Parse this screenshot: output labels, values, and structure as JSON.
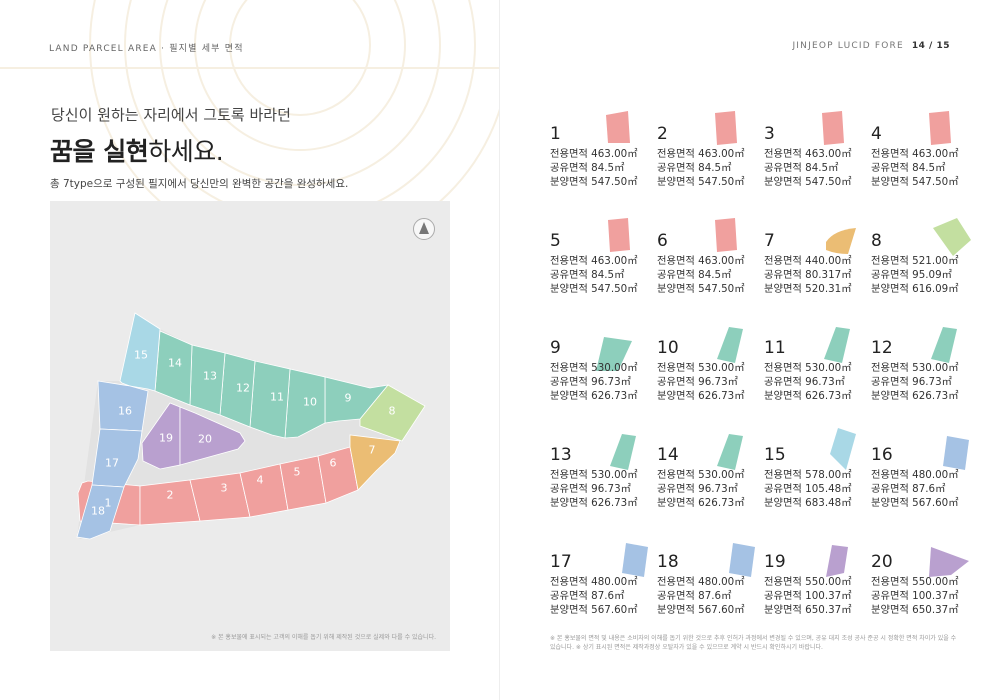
{
  "header": {
    "left_en": "LAND PARCEL AREA",
    "left_sep": "·",
    "left_ko": "필지별 세부 면적",
    "right_brand": "JINJEOP LUCID FORE",
    "page": "14 / 15"
  },
  "intro": {
    "subtitle": "당신이 원하는 자리에서 그토록 바라던",
    "title_bold": "꿈을 실현",
    "title_rest": "하세요.",
    "description": "총 7type으로 구성된 필지에서 당신만의 완벽한 공간을 완성하세요."
  },
  "map": {
    "compass_icon": "north-arrow-icon",
    "note": "※ 본 홍보물에 표시되는 고객의 이해를 돕기 위해 제작된 것으로 실제와 다를 수 있습니다.",
    "parcel_labels": [
      "1",
      "2",
      "3",
      "4",
      "5",
      "6",
      "7",
      "8",
      "9",
      "10",
      "11",
      "12",
      "13",
      "14",
      "15",
      "16",
      "17",
      "18",
      "19",
      "20"
    ]
  },
  "colors": {
    "pink": "#f0a09e",
    "orange": "#ebbd74",
    "green": "#c3dfa0",
    "teal": "#8dcfbc",
    "skyblue": "#a9d8e6",
    "blue": "#a5c2e4",
    "purple": "#b9a0cf"
  },
  "parcels": [
    {
      "num": "1",
      "exclusive": "전용면적 463.00㎡",
      "common": "공유면적 84.5㎡",
      "sale": "분양면적 547.50㎡",
      "color": "pink"
    },
    {
      "num": "2",
      "exclusive": "전용면적 463.00㎡",
      "common": "공유면적 84.5㎡",
      "sale": "분양면적 547.50㎡",
      "color": "pink"
    },
    {
      "num": "3",
      "exclusive": "전용면적 463.00㎡",
      "common": "공유면적 84.5㎡",
      "sale": "분양면적 547.50㎡",
      "color": "pink"
    },
    {
      "num": "4",
      "exclusive": "전용면적 463.00㎡",
      "common": "공유면적 84.5㎡",
      "sale": "분양면적 547.50㎡",
      "color": "pink"
    },
    {
      "num": "5",
      "exclusive": "전용면적 463.00㎡",
      "common": "공유면적 84.5㎡",
      "sale": "분양면적 547.50㎡",
      "color": "pink"
    },
    {
      "num": "6",
      "exclusive": "전용면적 463.00㎡",
      "common": "공유면적 84.5㎡",
      "sale": "분양면적 547.50㎡",
      "color": "pink"
    },
    {
      "num": "7",
      "exclusive": "전용면적 440.00㎡",
      "common": "공유면적 80.317㎡",
      "sale": "분양면적 520.31㎡",
      "color": "orange"
    },
    {
      "num": "8",
      "exclusive": "전용면적 521.00㎡",
      "common": "공유면적 95.09㎡",
      "sale": "분양면적 616.09㎡",
      "color": "green"
    },
    {
      "num": "9",
      "exclusive": "전용면적 530.00㎡",
      "common": "공유면적 96.73㎡",
      "sale": "분양면적 626.73㎡",
      "color": "teal"
    },
    {
      "num": "10",
      "exclusive": "전용면적 530.00㎡",
      "common": "공유면적 96.73㎡",
      "sale": "분양면적 626.73㎡",
      "color": "teal"
    },
    {
      "num": "11",
      "exclusive": "전용면적 530.00㎡",
      "common": "공유면적 96.73㎡",
      "sale": "분양면적 626.73㎡",
      "color": "teal"
    },
    {
      "num": "12",
      "exclusive": "전용면적 530.00㎡",
      "common": "공유면적 96.73㎡",
      "sale": "분양면적 626.73㎡",
      "color": "teal"
    },
    {
      "num": "13",
      "exclusive": "전용면적 530.00㎡",
      "common": "공유면적 96.73㎡",
      "sale": "분양면적 626.73㎡",
      "color": "teal"
    },
    {
      "num": "14",
      "exclusive": "전용면적 530.00㎡",
      "common": "공유면적 96.73㎡",
      "sale": "분양면적 626.73㎡",
      "color": "teal"
    },
    {
      "num": "15",
      "exclusive": "전용면적 578.00㎡",
      "common": "공유면적 105.48㎡",
      "sale": "분양면적 683.48㎡",
      "color": "skyblue"
    },
    {
      "num": "16",
      "exclusive": "전용면적 480.00㎡",
      "common": "공유면적 87.6㎡",
      "sale": "분양면적 567.60㎡",
      "color": "blue"
    },
    {
      "num": "17",
      "exclusive": "전용면적 480.00㎡",
      "common": "공유면적 87.6㎡",
      "sale": "분양면적 567.60㎡",
      "color": "blue"
    },
    {
      "num": "18",
      "exclusive": "전용면적 480.00㎡",
      "common": "공유면적 87.6㎡",
      "sale": "분양면적 567.60㎡",
      "color": "blue"
    },
    {
      "num": "19",
      "exclusive": "전용면적 550.00㎡",
      "common": "공유면적 100.37㎡",
      "sale": "분양면적 650.37㎡",
      "color": "purple"
    },
    {
      "num": "20",
      "exclusive": "전용면적 550.00㎡",
      "common": "공유면적 100.37㎡",
      "sale": "분양면적 650.37㎡",
      "color": "purple"
    }
  ],
  "footnote": "※ 본 홍보물의 면적 및 내용은 소비자의 이해를 돕기 위한 것으로 추후 인허가 과정에서 변경될 수 있으며, 공유 대지 조성 공사 준공 시 정확한 면적 차이가 있을 수 있습니다. ※ 상기 표시된 면적은 제작과정상 오탈자가 있을 수 있으므로 계약 시 반드시 확인하시기 바랍니다."
}
